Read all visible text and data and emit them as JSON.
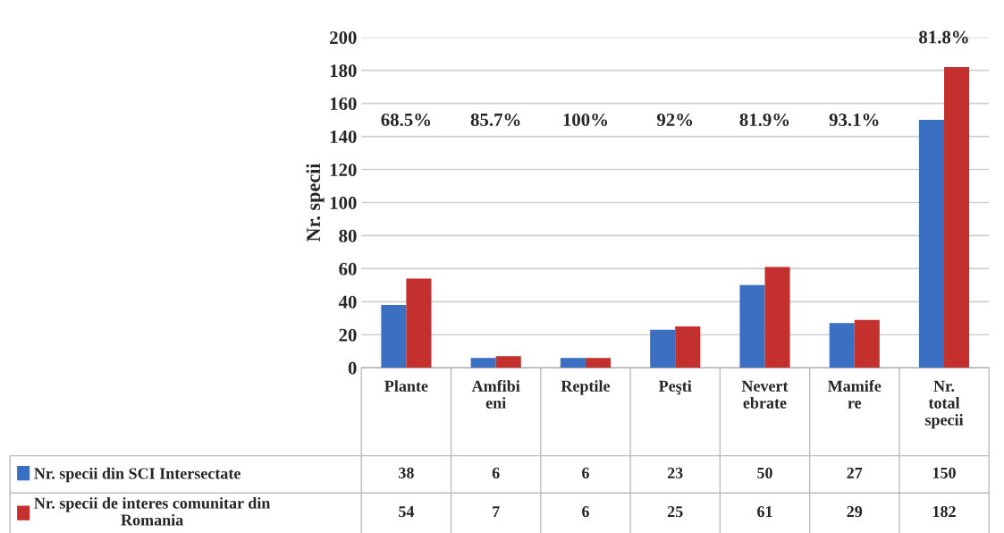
{
  "chart_data": {
    "type": "bar",
    "ylabel": "Nr. specii",
    "categories": [
      "Plante",
      "Amfibi\neni",
      "Reptile",
      "Peşti",
      "Nevert\nebrate",
      "Mamife\nre",
      "Nr.\ntotal\nspecii"
    ],
    "series": [
      {
        "name": "Nr. specii din SCI Intersectate",
        "color": "#3b6fc2",
        "values": [
          38,
          6,
          6,
          23,
          50,
          27,
          150
        ]
      },
      {
        "name": "Nr. specii de interes comunitar din\nRomania",
        "color": "#c3302e",
        "values": [
          54,
          7,
          6,
          25,
          61,
          29,
          182
        ]
      }
    ],
    "annotations": [
      "68.5%",
      "85.7%",
      "100%",
      "92%",
      "81.9%",
      "93.1%",
      "81.8%"
    ],
    "ylim": [
      0,
      200
    ],
    "yticks": [
      0,
      20,
      40,
      60,
      80,
      100,
      120,
      140,
      160,
      180,
      200
    ],
    "grid": "y",
    "data_labels": true,
    "legend": "bottom"
  }
}
